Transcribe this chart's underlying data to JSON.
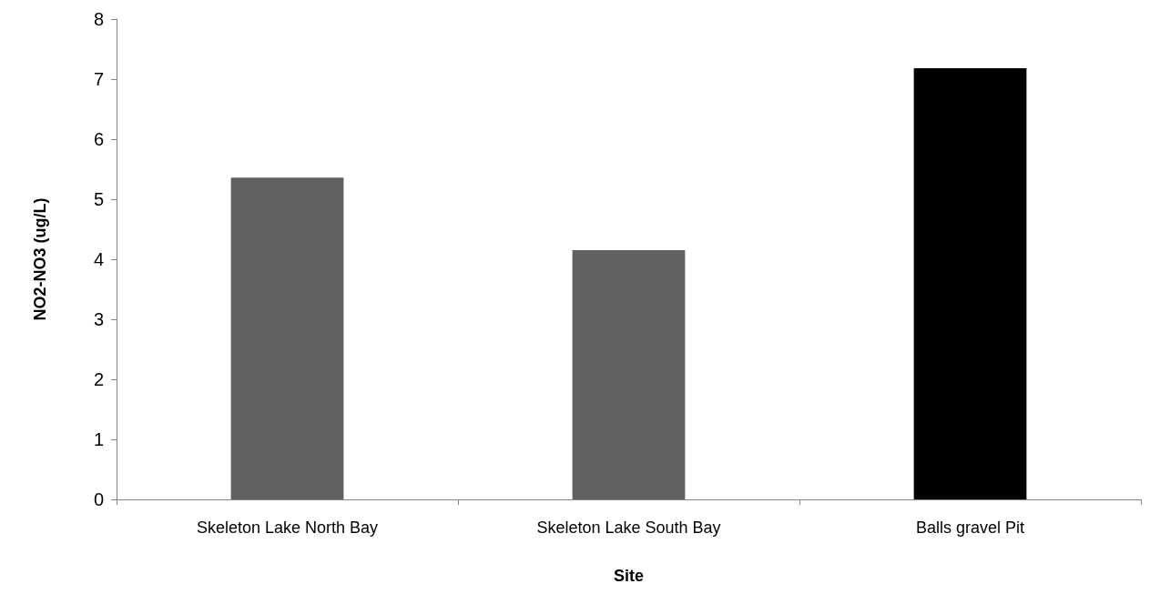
{
  "chart_data": {
    "type": "bar",
    "xlabel": "Site",
    "ylabel": "NO2-NO3 (ug/L)",
    "categories": [
      "Skeleton Lake North Bay",
      "Skeleton Lake South Bay",
      "Balls gravel Pit"
    ],
    "values": [
      5.36,
      4.15,
      7.18
    ],
    "colors": [
      "#606060",
      "#606060",
      "#000000"
    ],
    "ylim": [
      0,
      8
    ],
    "yticks": [
      0,
      1,
      2,
      3,
      4,
      5,
      6,
      7,
      8
    ],
    "grid": false
  }
}
